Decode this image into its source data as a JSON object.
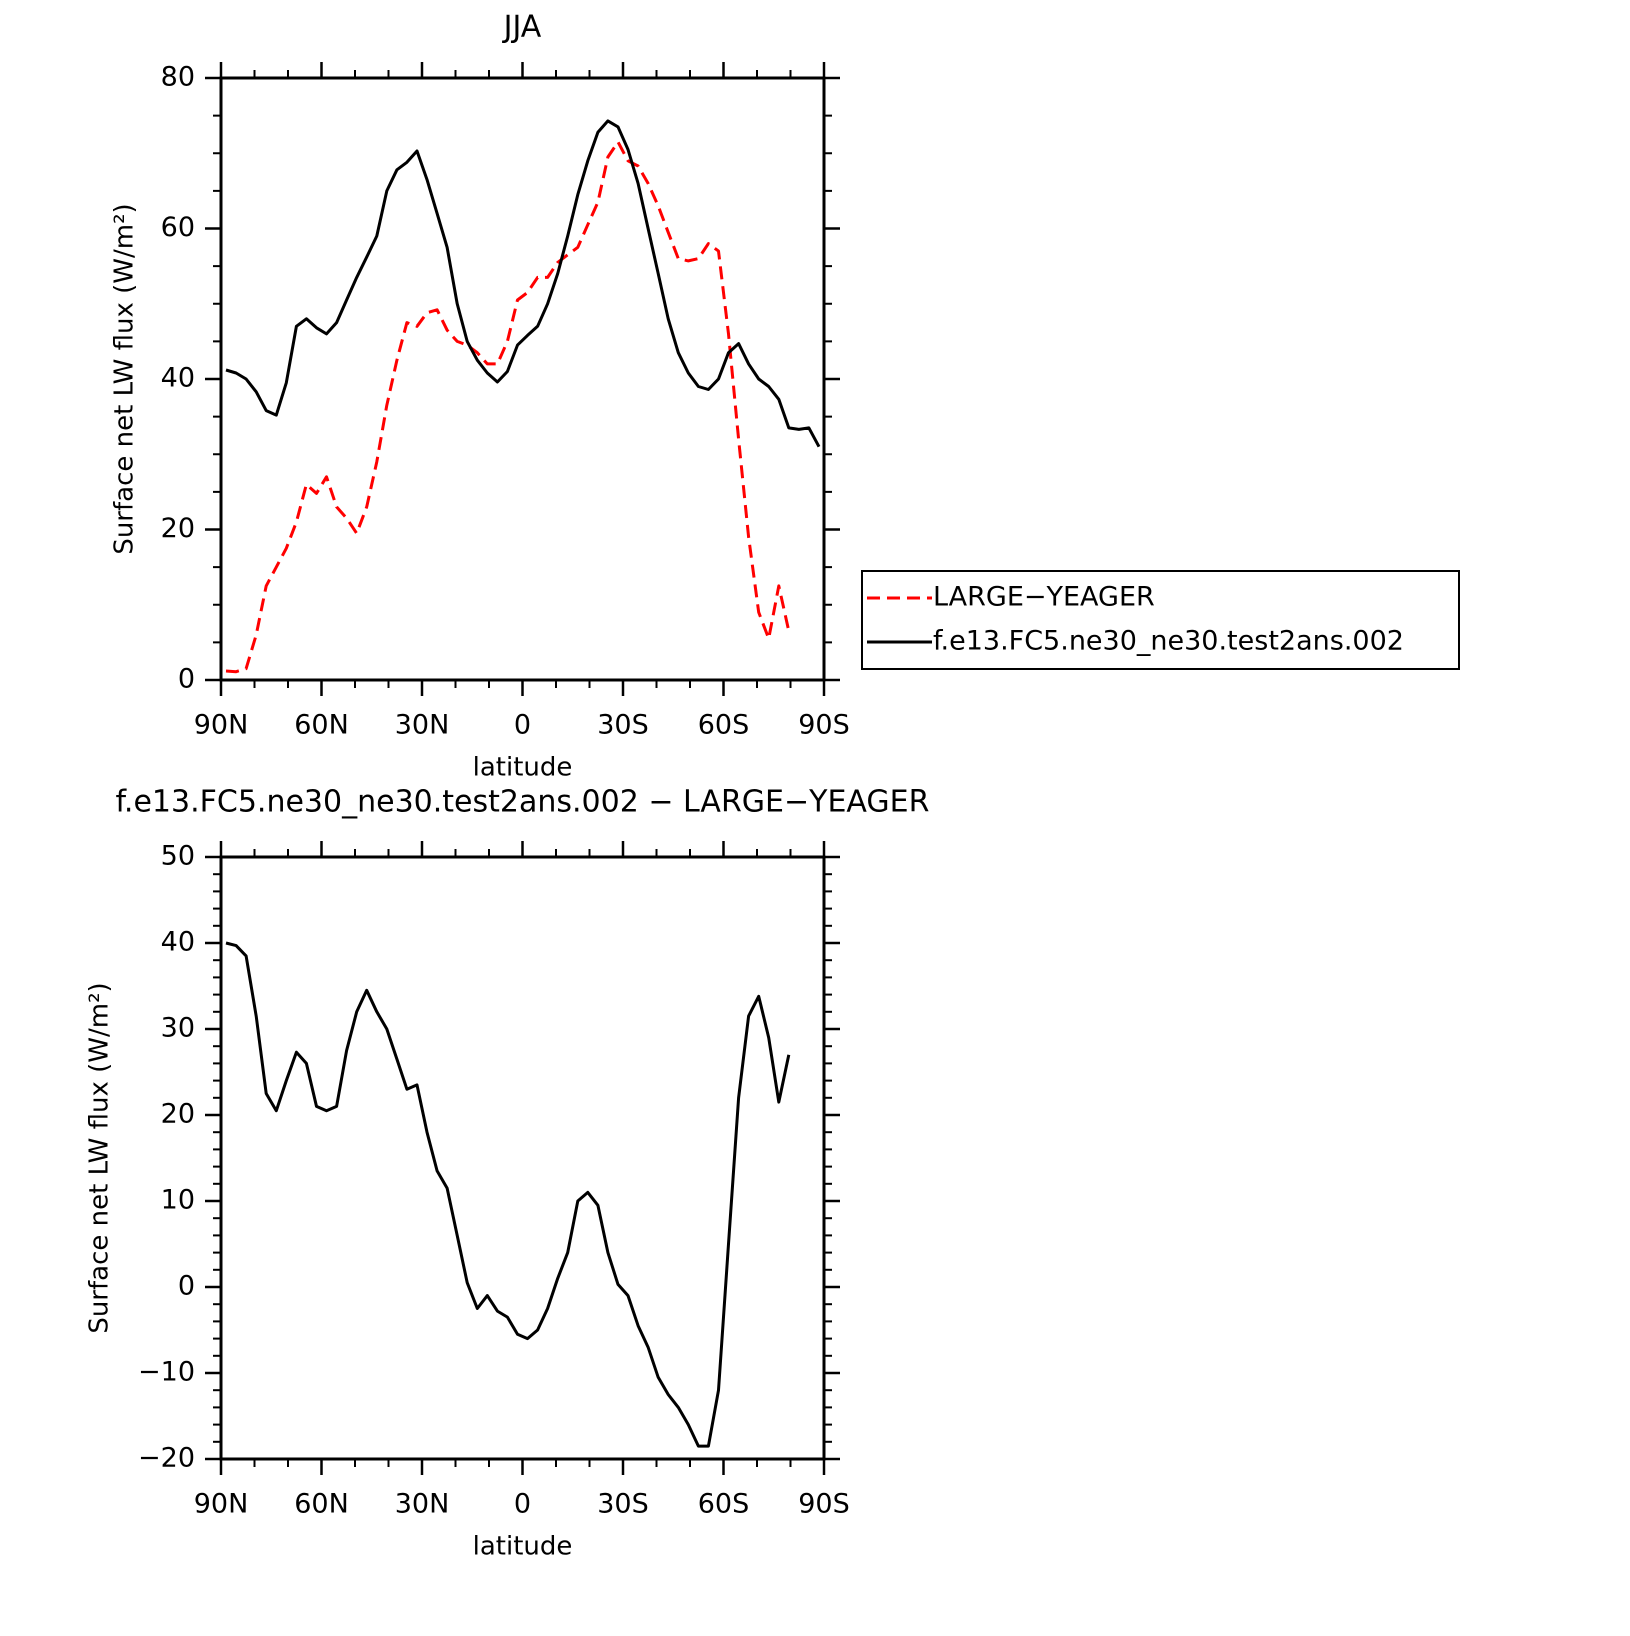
{
  "chart_data": [
    {
      "type": "line",
      "title": "JJA",
      "xlabel": "latitude",
      "ylabel": "Surface net LW flux (W/m²)",
      "x": [
        88.5,
        85.5,
        82.5,
        79.5,
        76.5,
        73.5,
        70.5,
        67.5,
        64.5,
        61.5,
        58.5,
        55.5,
        52.5,
        49.5,
        46.5,
        43.5,
        40.5,
        37.5,
        34.5,
        31.5,
        28.5,
        25.5,
        22.5,
        19.5,
        16.5,
        13.5,
        10.5,
        7.5,
        4.5,
        1.5,
        -1.5,
        -4.5,
        -7.5,
        -10.5,
        -13.5,
        -16.5,
        -19.5,
        -22.5,
        -25.5,
        -28.5,
        -31.5,
        -34.5,
        -37.5,
        -40.5,
        -43.5,
        -46.5,
        -49.5,
        -52.5,
        -55.5,
        -58.5,
        -61.5,
        -64.5,
        -67.5,
        -70.5,
        -73.5,
        -76.5,
        -79.5,
        -82.5,
        -85.5,
        -88.5
      ],
      "series": [
        {
          "name": "LARGE−YEAGER",
          "color": "#ff0000",
          "linestyle": "dashed",
          "values": [
            1.2,
            1.1,
            1.5,
            6.0,
            12.5,
            15.0,
            17.5,
            21.0,
            26.0,
            24.8,
            27.0,
            23.0,
            21.5,
            19.5,
            23.0,
            29.0,
            36.5,
            42.5,
            47.5,
            47.0,
            48.8,
            49.2,
            46.5,
            45.0,
            44.5,
            43.5,
            42.0,
            42.0,
            45.0,
            50.5,
            51.5,
            53.5,
            53.5,
            55.5,
            56.5,
            57.5,
            60.5,
            63.5,
            69.5,
            71.5,
            69.0,
            68.3,
            66.0,
            63.0,
            59.5,
            56.0,
            55.7,
            56.0,
            58.0,
            57.0,
            46.0,
            32.0,
            19.0,
            9.0,
            5.5,
            12.5,
            6.5,
            null,
            null,
            null
          ]
        },
        {
          "name": "f.e13.FC5.ne30_ne30.test2ans.002",
          "color": "#000000",
          "linestyle": "solid",
          "values": [
            41.2,
            40.8,
            40.0,
            38.3,
            35.8,
            35.2,
            39.5,
            47.0,
            48.0,
            46.8,
            46.0,
            47.5,
            50.5,
            53.5,
            56.2,
            59.0,
            65.0,
            67.8,
            68.8,
            70.3,
            66.5,
            62.0,
            57.5,
            50.0,
            45.0,
            42.5,
            40.8,
            39.6,
            41.0,
            44.5,
            45.8,
            47.0,
            50.0,
            54.0,
            59.0,
            64.5,
            69.0,
            72.8,
            74.3,
            73.5,
            70.5,
            66.0,
            60.0,
            54.0,
            48.0,
            43.5,
            40.8,
            39.0,
            38.6,
            40.0,
            43.5,
            44.7,
            42.0,
            40.0,
            39.0,
            37.3,
            33.5,
            33.3,
            33.5,
            31.0
          ]
        }
      ],
      "xlim": [
        90,
        -90
      ],
      "xticks": [
        {
          "value": 90,
          "label": "90N"
        },
        {
          "value": 60,
          "label": "60N"
        },
        {
          "value": 30,
          "label": "30N"
        },
        0,
        {
          "value": -30,
          "label": "30S"
        },
        {
          "value": -60,
          "label": "60S"
        },
        {
          "value": -90,
          "label": "90S"
        }
      ],
      "xminorticks": [
        80,
        70,
        50,
        40,
        20,
        10,
        -10,
        -20,
        -40,
        -50,
        -70,
        -80
      ],
      "ylim": [
        0,
        80
      ],
      "yticks": [
        0,
        20,
        40,
        60,
        80
      ],
      "yminorticks": [
        5,
        10,
        15,
        25,
        30,
        35,
        45,
        50,
        55,
        65,
        70,
        75
      ],
      "legend": "right"
    },
    {
      "type": "line",
      "title": "f.e13.FC5.ne30_ne30.test2ans.002 − LARGE−YEAGER",
      "xlabel": "latitude",
      "ylabel": "Surface net LW flux (W/m²)",
      "x": [
        88.5,
        85.5,
        82.5,
        79.5,
        76.5,
        73.5,
        70.5,
        67.5,
        64.5,
        61.5,
        58.5,
        55.5,
        52.5,
        49.5,
        46.5,
        43.5,
        40.5,
        37.5,
        34.5,
        31.5,
        28.5,
        25.5,
        22.5,
        19.5,
        16.5,
        13.5,
        10.5,
        7.5,
        4.5,
        1.5,
        -1.5,
        -4.5,
        -7.5,
        -10.5,
        -13.5,
        -16.5,
        -19.5,
        -22.5,
        -25.5,
        -28.5,
        -31.5,
        -34.5,
        -37.5,
        -40.5,
        -43.5,
        -46.5,
        -49.5,
        -52.5,
        -55.5,
        -58.5,
        -61.5,
        -64.5,
        -67.5,
        -70.5,
        -73.5,
        -76.5,
        -79.5,
        -82.5,
        -85.5,
        -88.5
      ],
      "series": [
        {
          "color": "#000000",
          "linestyle": "solid",
          "values": [
            40.0,
            39.7,
            38.5,
            31.5,
            22.5,
            20.5,
            24.0,
            27.3,
            26.0,
            21.0,
            20.5,
            21.0,
            27.5,
            32.0,
            34.5,
            32.0,
            30.0,
            26.5,
            23.0,
            23.5,
            18.0,
            13.5,
            11.5,
            6.0,
            0.5,
            -2.5,
            -1.0,
            -2.8,
            -3.5,
            -5.5,
            -6.0,
            -5.0,
            -2.5,
            1.0,
            4.0,
            10.0,
            11.0,
            9.5,
            4.0,
            0.3,
            -1.0,
            -4.5,
            -7.0,
            -10.5,
            -12.5,
            -14.0,
            -16.0,
            -18.5,
            -18.5,
            -12.0,
            5.0,
            22.0,
            31.5,
            33.8,
            29.0,
            21.5,
            27.0,
            null,
            null,
            null
          ]
        }
      ],
      "xlim": [
        90,
        -90
      ],
      "xticks": [
        {
          "value": 90,
          "label": "90N"
        },
        {
          "value": 60,
          "label": "60N"
        },
        {
          "value": 30,
          "label": "30N"
        },
        0,
        {
          "value": -30,
          "label": "30S"
        },
        {
          "value": -60,
          "label": "60S"
        },
        {
          "value": -90,
          "label": "90S"
        }
      ],
      "xminorticks": [
        80,
        70,
        50,
        40,
        20,
        10,
        -10,
        -20,
        -40,
        -50,
        -70,
        -80
      ],
      "ylim": [
        -20,
        50
      ],
      "yticks": [
        {
          "value": -20,
          "label": "−20"
        },
        {
          "value": -10,
          "label": "−10"
        },
        0,
        10,
        20,
        30,
        40,
        50
      ],
      "yminorticks": [
        -18,
        -16,
        -14,
        -12,
        -8,
        -6,
        -4,
        -2,
        2,
        4,
        6,
        8,
        12,
        14,
        16,
        18,
        22,
        24,
        26,
        28,
        32,
        34,
        36,
        38,
        42,
        44,
        46,
        48
      ]
    }
  ]
}
